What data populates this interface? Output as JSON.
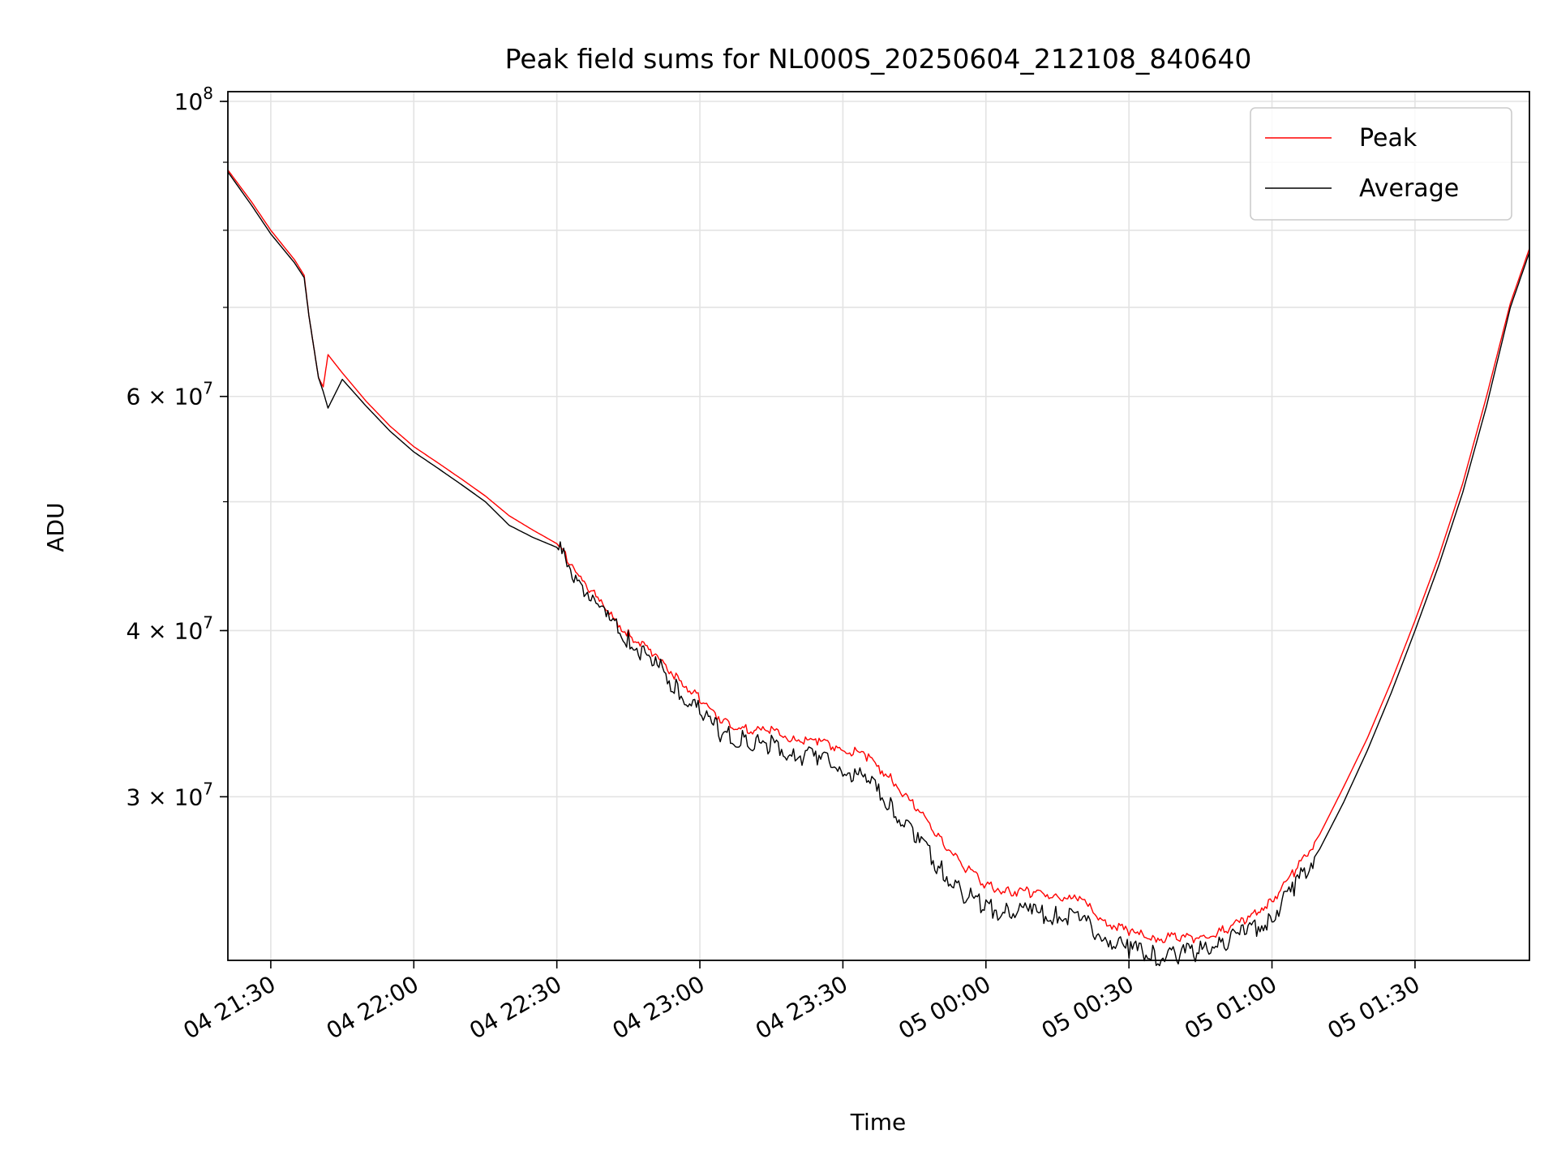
{
  "chart_data": {
    "type": "line",
    "title": "Peak field sums for NL000S_20250604_212108_840640",
    "xlabel": "Time",
    "ylabel": "ADU",
    "y_scale": "log",
    "grid": true,
    "legend_position": "top-right",
    "xlim": [
      "2025-06-04 21:21:00",
      "2025-06-05 01:54:00"
    ],
    "ylim": [
      22600000,
      101700000
    ],
    "x_tick_labels": [
      "04 21:30",
      "04 22:00",
      "04 22:30",
      "04 23:00",
      "04 23:30",
      "05 00:00",
      "05 00:30",
      "05 01:00",
      "05 01:30"
    ],
    "x_tick_values": [
      "2025-06-04 21:30:00",
      "2025-06-04 22:00:00",
      "2025-06-04 22:30:00",
      "2025-06-04 23:00:00",
      "2025-06-04 23:30:00",
      "2025-06-05 00:00:00",
      "2025-06-05 00:30:00",
      "2025-06-05 01:00:00",
      "2025-06-05 01:30:00"
    ],
    "y_tick_labels": [
      {
        "base": "",
        "exp": "8",
        "value": 100000000
      },
      {
        "base": "6 × 10",
        "exp": "7",
        "value": 60000000
      },
      {
        "base": "4 × 10",
        "exp": "7",
        "value": 40000000
      },
      {
        "base": "3 × 10",
        "exp": "7",
        "value": 30000000
      }
    ],
    "y_gridlines": [
      100000000,
      90000000,
      80000000,
      70000000,
      60000000,
      50000000,
      40000000,
      30000000
    ],
    "series": [
      {
        "name": "Peak",
        "color": "#ff0000",
        "x": [
          "2025-06-04 21:21:00",
          "2025-06-04 21:26:00",
          "2025-06-04 21:30:00",
          "2025-06-04 21:35:00",
          "2025-06-04 21:37:00",
          "2025-06-04 21:38:00",
          "2025-06-04 21:40:00",
          "2025-06-04 21:41:00",
          "2025-06-04 21:42:00",
          "2025-06-04 21:45:00",
          "2025-06-04 21:50:00",
          "2025-06-04 21:55:00",
          "2025-06-04 22:00:00",
          "2025-06-04 22:05:00",
          "2025-06-04 22:10:00",
          "2025-06-04 22:15:00",
          "2025-06-04 22:20:00",
          "2025-06-04 22:25:00",
          "2025-06-04 22:30:00",
          "2025-06-04 22:35:00",
          "2025-06-04 22:40:00",
          "2025-06-04 22:45:00",
          "2025-06-04 22:50:00",
          "2025-06-04 22:55:00",
          "2025-06-04 23:00:00",
          "2025-06-04 23:05:00",
          "2025-06-04 23:10:00",
          "2025-06-04 23:15:00",
          "2025-06-04 23:20:00",
          "2025-06-04 23:25:00",
          "2025-06-04 23:30:00",
          "2025-06-04 23:35:00",
          "2025-06-04 23:40:00",
          "2025-06-04 23:45:00",
          "2025-06-04 23:50:00",
          "2025-06-04 23:55:00",
          "2025-06-05 00:00:00",
          "2025-06-05 00:05:00",
          "2025-06-05 00:10:00",
          "2025-06-05 00:15:00",
          "2025-06-05 00:20:00",
          "2025-06-05 00:25:00",
          "2025-06-05 00:30:00",
          "2025-06-05 00:35:00",
          "2025-06-05 00:40:00",
          "2025-06-05 00:45:00",
          "2025-06-05 00:50:00",
          "2025-06-05 00:55:00",
          "2025-06-05 01:00:00",
          "2025-06-05 01:05:00",
          "2025-06-05 01:10:00",
          "2025-06-05 01:15:00",
          "2025-06-05 01:20:00",
          "2025-06-05 01:25:00",
          "2025-06-05 01:30:00",
          "2025-06-05 01:35:00",
          "2025-06-05 01:40:00",
          "2025-06-05 01:45:00",
          "2025-06-05 01:50:00",
          "2025-06-05 01:54:00"
        ],
        "values": [
          88800000,
          84000000,
          80000000,
          76000000,
          74000000,
          69000000,
          62000000,
          61000000,
          64500000,
          62500000,
          59500000,
          57000000,
          55000000,
          53500000,
          52000000,
          50500000,
          48800000,
          47600000,
          46500000,
          44000000,
          41500000,
          39800000,
          38500000,
          37000000,
          35500000,
          34200000,
          33700000,
          33600000,
          33200000,
          32900000,
          32700000,
          32100000,
          31000000,
          29500000,
          28000000,
          26700000,
          25700000,
          25500000,
          25400000,
          25300000,
          25000000,
          24200000,
          23700000,
          23500000,
          23500000,
          23500000,
          23800000,
          24300000,
          25100000,
          26400000,
          28100000,
          30500000,
          33200000,
          36600000,
          40700000,
          45500000,
          51600000,
          60000000,
          70500000,
          77500000
        ]
      },
      {
        "name": "Average",
        "color": "#000000",
        "x": [
          "2025-06-04 21:21:00",
          "2025-06-04 21:26:00",
          "2025-06-04 21:30:00",
          "2025-06-04 21:35:00",
          "2025-06-04 21:37:00",
          "2025-06-04 21:38:00",
          "2025-06-04 21:40:00",
          "2025-06-04 21:41:00",
          "2025-06-04 21:42:00",
          "2025-06-04 21:45:00",
          "2025-06-04 21:50:00",
          "2025-06-04 21:55:00",
          "2025-06-04 22:00:00",
          "2025-06-04 22:05:00",
          "2025-06-04 22:10:00",
          "2025-06-04 22:15:00",
          "2025-06-04 22:20:00",
          "2025-06-04 22:25:00",
          "2025-06-04 22:30:00",
          "2025-06-04 22:35:00",
          "2025-06-04 22:40:00",
          "2025-06-04 22:45:00",
          "2025-06-04 22:50:00",
          "2025-06-04 22:55:00",
          "2025-06-04 23:00:00",
          "2025-06-04 23:05:00",
          "2025-06-04 23:10:00",
          "2025-06-04 23:15:00",
          "2025-06-04 23:20:00",
          "2025-06-04 23:25:00",
          "2025-06-04 23:30:00",
          "2025-06-04 23:35:00",
          "2025-06-04 23:40:00",
          "2025-06-04 23:45:00",
          "2025-06-04 23:50:00",
          "2025-06-04 23:55:00",
          "2025-06-05 00:00:00",
          "2025-06-05 00:05:00",
          "2025-06-05 00:10:00",
          "2025-06-05 00:15:00",
          "2025-06-05 00:20:00",
          "2025-06-05 00:25:00",
          "2025-06-05 00:30:00",
          "2025-06-05 00:35:00",
          "2025-06-05 00:40:00",
          "2025-06-05 00:45:00",
          "2025-06-05 00:50:00",
          "2025-06-05 00:55:00",
          "2025-06-05 01:00:00",
          "2025-06-05 01:05:00",
          "2025-06-05 01:10:00",
          "2025-06-05 01:15:00",
          "2025-06-05 01:20:00",
          "2025-06-05 01:25:00",
          "2025-06-05 01:30:00",
          "2025-06-05 01:35:00",
          "2025-06-05 01:40:00",
          "2025-06-05 01:45:00",
          "2025-06-05 01:50:00",
          "2025-06-05 01:54:00"
        ],
        "values": [
          88500000,
          83500000,
          79500000,
          75600000,
          73700000,
          69000000,
          62000000,
          60500000,
          58800000,
          61800000,
          59000000,
          56500000,
          54500000,
          53000000,
          51500000,
          50000000,
          48000000,
          47000000,
          46200000,
          43500000,
          41000000,
          39300000,
          38000000,
          36300000,
          34700000,
          33400000,
          33000000,
          32800000,
          32300000,
          32000000,
          31600000,
          30800000,
          29500000,
          28000000,
          26600000,
          25400000,
          24700000,
          24600000,
          24500000,
          24400000,
          24200000,
          23500000,
          23000000,
          22800000,
          22800000,
          23000000,
          23300000,
          23700000,
          24400000,
          25700000,
          27400000,
          29700000,
          32500000,
          35900000,
          40000000,
          44800000,
          50800000,
          59000000,
          70000000,
          77000000
        ]
      }
    ]
  }
}
